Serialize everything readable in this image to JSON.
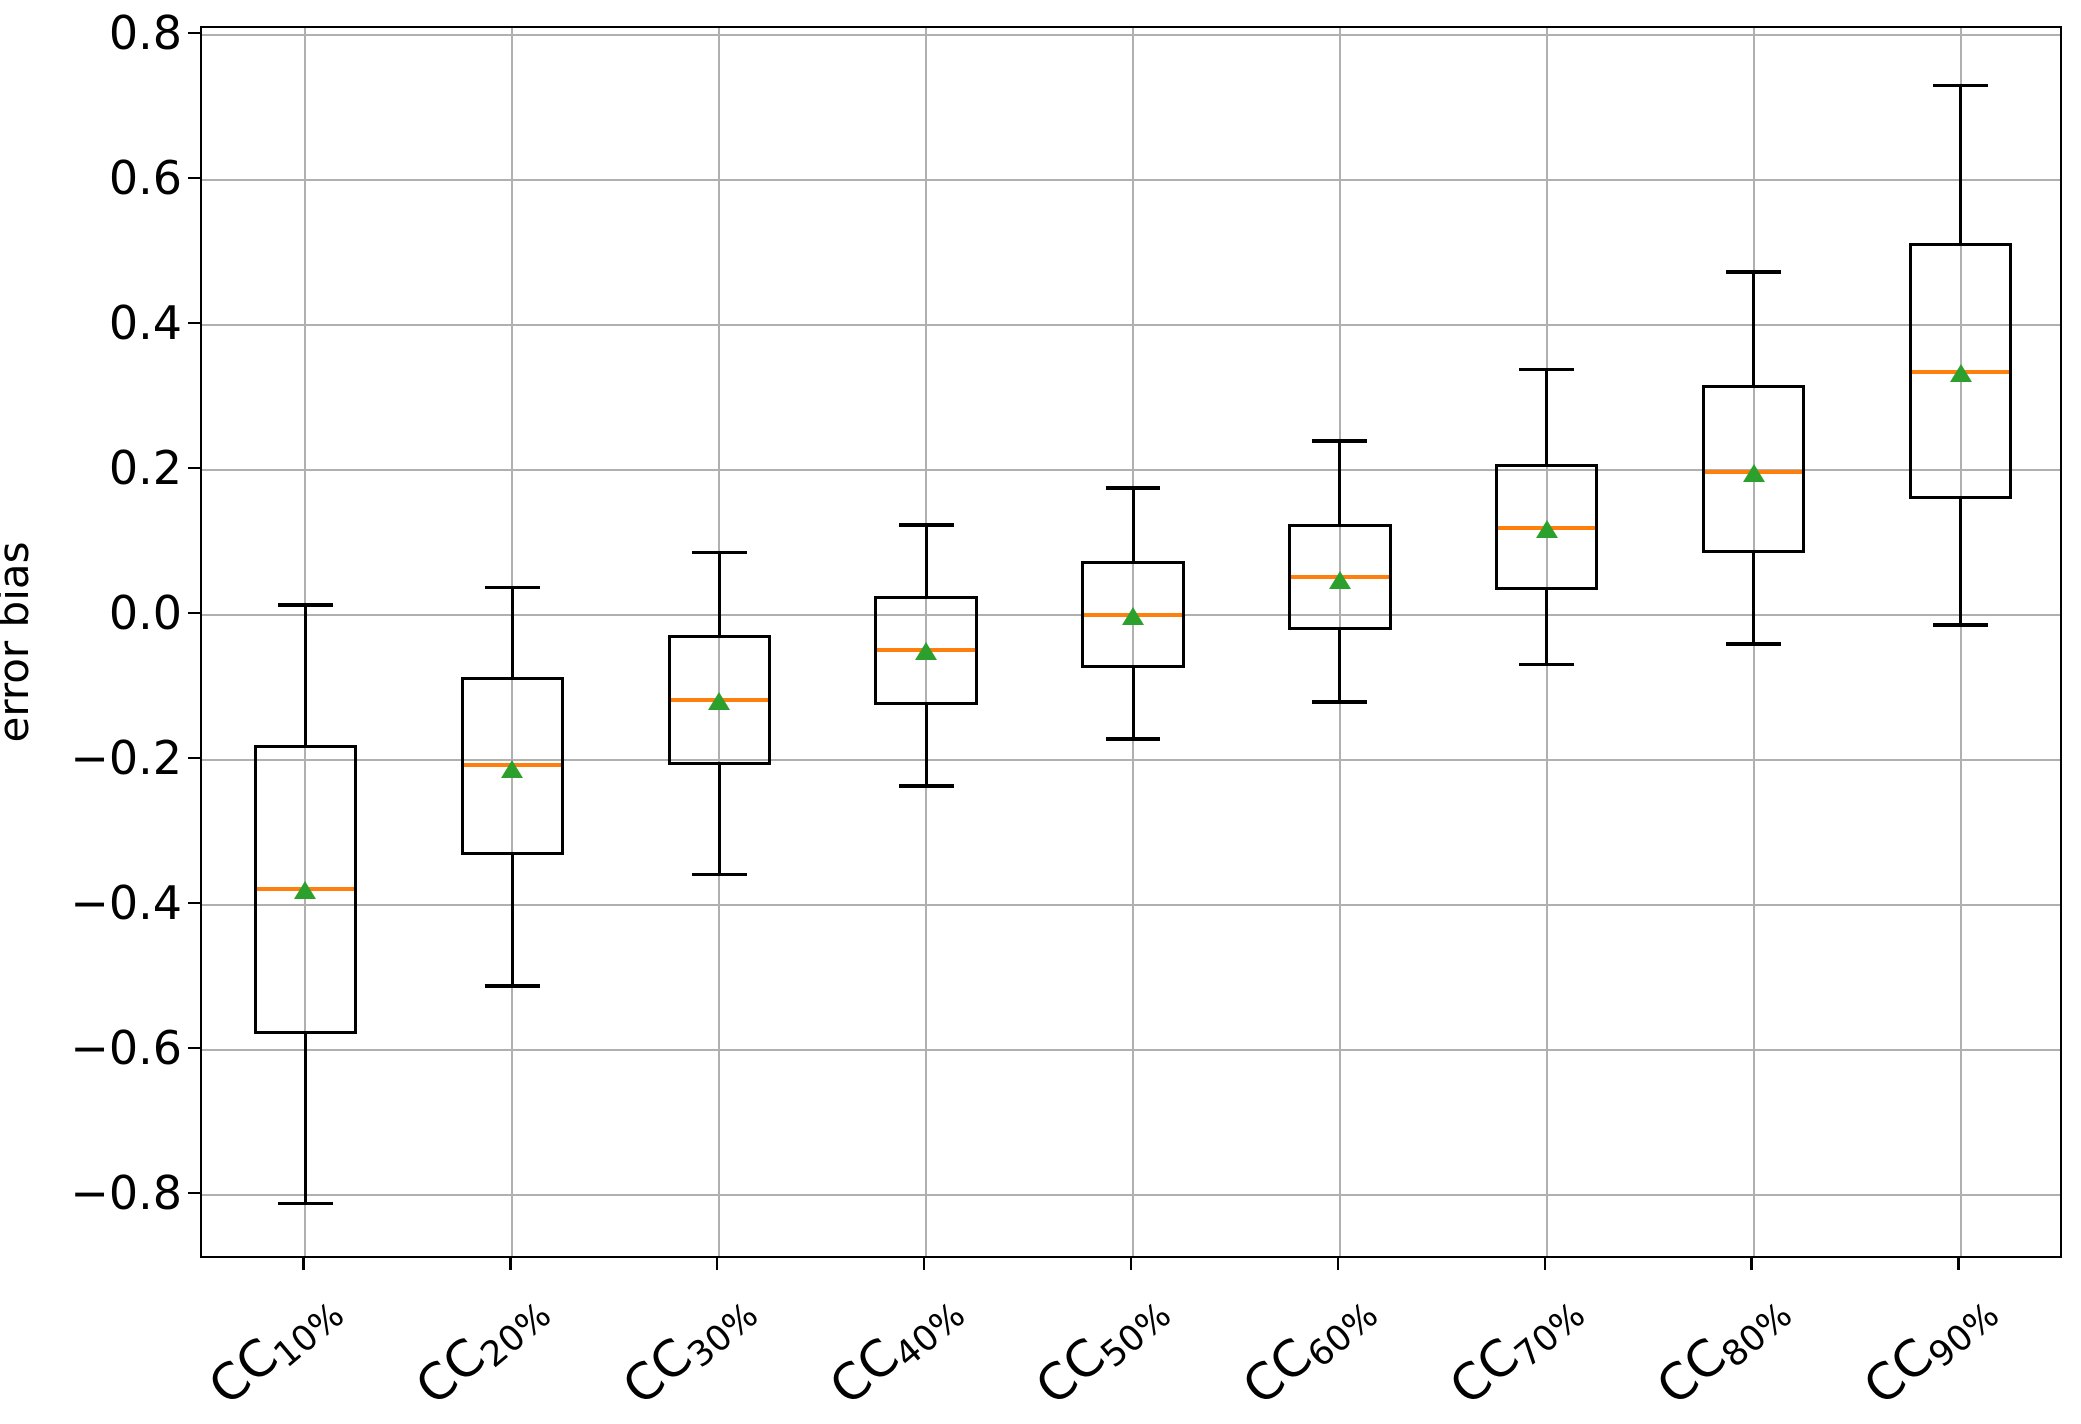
{
  "figure": {
    "background": "#ffffff",
    "colors": {
      "median": "#ff7f0e",
      "mean_marker": "#2ca02c",
      "gridline": "#b0b0b0",
      "box_line": "#000000",
      "spine": "#000000"
    }
  },
  "chart_data": {
    "type": "boxplot",
    "title": "",
    "xlabel": "",
    "ylabel": "error bias",
    "ylim": [
      -0.89,
      0.81
    ],
    "yticks": [
      0.8,
      0.6,
      0.4,
      0.2,
      0.0,
      -0.2,
      -0.4,
      -0.6,
      -0.8
    ],
    "grid": true,
    "legend": "none",
    "mean_marker_shape": "triangle-up",
    "categories": [
      {
        "prefix": "CC",
        "sub": "10%"
      },
      {
        "prefix": "CC",
        "sub": "20%"
      },
      {
        "prefix": "CC",
        "sub": "30%"
      },
      {
        "prefix": "CC",
        "sub": "40%"
      },
      {
        "prefix": "CC",
        "sub": "50%"
      },
      {
        "prefix": "CC",
        "sub": "60%"
      },
      {
        "prefix": "CC",
        "sub": "70%"
      },
      {
        "prefix": "CC",
        "sub": "80%"
      },
      {
        "prefix": "CC",
        "sub": "90%"
      }
    ],
    "series": [
      {
        "label": "CC10%",
        "whislo": -0.812,
        "q1": -0.578,
        "med": -0.378,
        "mean": -0.38,
        "q3": -0.18,
        "whishi": 0.014
      },
      {
        "label": "CC20%",
        "whislo": -0.512,
        "q1": -0.331,
        "med": -0.207,
        "mean": -0.212,
        "q3": -0.085,
        "whishi": 0.038
      },
      {
        "label": "CC30%",
        "whislo": -0.358,
        "q1": -0.207,
        "med": -0.117,
        "mean": -0.119,
        "q3": -0.028,
        "whishi": 0.086
      },
      {
        "label": "CC40%",
        "whislo": -0.236,
        "q1": -0.124,
        "med": -0.048,
        "mean": -0.05,
        "q3": 0.026,
        "whishi": 0.124
      },
      {
        "label": "CC50%",
        "whislo": -0.171,
        "q1": -0.073,
        "med": 0.0,
        "mean": -0.001,
        "q3": 0.075,
        "whishi": 0.175
      },
      {
        "label": "CC60%",
        "whislo": -0.12,
        "q1": -0.021,
        "med": 0.053,
        "mean": 0.048,
        "q3": 0.126,
        "whishi": 0.24
      },
      {
        "label": "CC70%",
        "whislo": -0.068,
        "q1": 0.035,
        "med": 0.12,
        "mean": 0.119,
        "q3": 0.209,
        "whishi": 0.339
      },
      {
        "label": "CC80%",
        "whislo": -0.04,
        "q1": 0.086,
        "med": 0.197,
        "mean": 0.196,
        "q3": 0.317,
        "whishi": 0.473
      },
      {
        "label": "CC90%",
        "whislo": -0.014,
        "q1": 0.16,
        "med": 0.335,
        "mean": 0.334,
        "q3": 0.514,
        "whishi": 0.731
      }
    ]
  }
}
